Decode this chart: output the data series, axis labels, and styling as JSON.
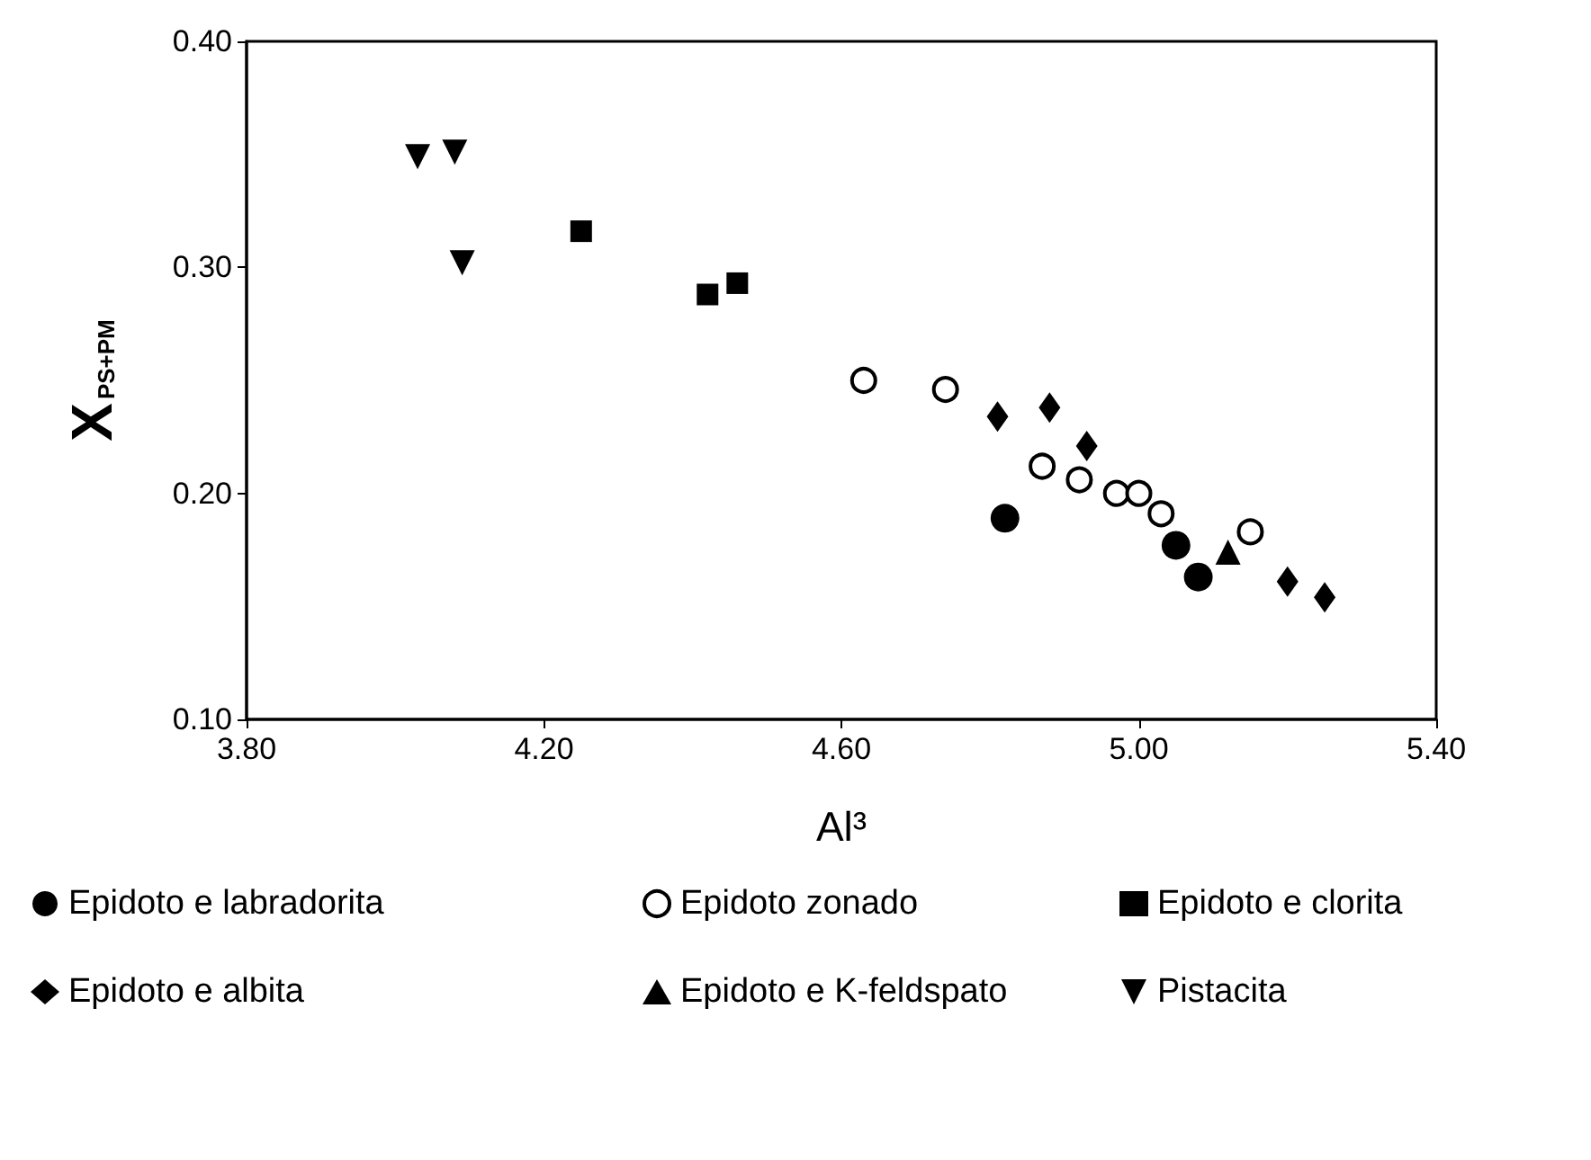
{
  "chart_data": {
    "type": "scatter",
    "xlabel": "Al³",
    "ylabel": "X$_{PS+PM}$",
    "xlim": [
      3.8,
      5.4
    ],
    "xticks": [
      {
        "value": 3.8,
        "label": "3.80"
      },
      {
        "value": 4.2,
        "label": "4.20"
      },
      {
        "value": 4.6,
        "label": "4.60"
      },
      {
        "value": 5.0,
        "label": "5.00"
      },
      {
        "value": 5.4,
        "label": "5.40"
      }
    ],
    "ylim": [
      0.1,
      0.4
    ],
    "yticks": [
      {
        "value": 0.1,
        "label": "0.10"
      },
      {
        "value": 0.2,
        "label": "0.20"
      },
      {
        "value": 0.3,
        "label": "0.30"
      },
      {
        "value": 0.4,
        "label": "0.40"
      }
    ],
    "legend": "bottom",
    "series": [
      {
        "name": "Epidoto e labradorita",
        "color": "#000000",
        "marker": "circle",
        "x": [
          4.82,
          5.05,
          5.08
        ],
        "values": [
          0.189,
          0.177,
          0.163
        ]
      },
      {
        "name": "Epidoto e albita",
        "color": "#000000",
        "marker": "diamond",
        "x": [
          4.81,
          4.88,
          4.93,
          5.2,
          5.25
        ],
        "values": [
          0.234,
          0.238,
          0.221,
          0.161,
          0.154
        ]
      },
      {
        "name": "Epidoto zonado",
        "color": "#000000",
        "marker": "circle-open",
        "x": [
          4.63,
          4.74,
          4.87,
          4.92,
          4.97,
          5.0,
          5.03,
          5.15
        ],
        "values": [
          0.25,
          0.246,
          0.212,
          0.206,
          0.2,
          0.2,
          0.191,
          0.183
        ]
      },
      {
        "name": "Epidoto e K-feldspato",
        "color": "#000000",
        "marker": "triangle",
        "x": [
          5.12
        ],
        "values": [
          0.174
        ]
      },
      {
        "name": "Epidoto e clorita",
        "color": "#000000",
        "marker": "square",
        "x": [
          4.25,
          4.42,
          4.46
        ],
        "values": [
          0.316,
          0.288,
          0.293
        ]
      },
      {
        "name": "Pistacita",
        "color": "#000000",
        "marker": "triangle-down",
        "x": [
          4.03,
          4.08,
          4.09
        ],
        "values": [
          0.349,
          0.351,
          0.302
        ]
      }
    ]
  }
}
